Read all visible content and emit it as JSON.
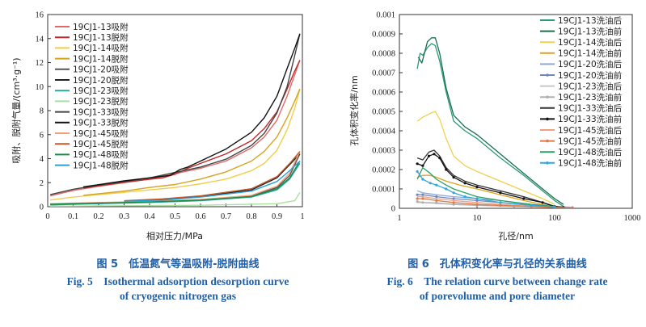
{
  "chart_data": [
    {
      "type": "line",
      "title": "低温氮气等温吸附-脱附曲线",
      "xlabel": "相对压力/MPa",
      "ylabel": "吸附、脱附气量/(cm³·g⁻¹)",
      "xlim": [
        0,
        1.0
      ],
      "ylim": [
        0,
        16
      ],
      "xticks": [
        "0",
        "0.1",
        "0.2",
        "0.3",
        "0.4",
        "0.5",
        "0.6",
        "0.7",
        "0.8",
        "0.9",
        "1"
      ],
      "yticks": [
        "0",
        "2",
        "4",
        "6",
        "8",
        "10",
        "12",
        "14",
        "16"
      ],
      "legend_position": "top-left",
      "caption_zh": "图 5　低温氮气等温吸附-脱附曲线",
      "caption_en_1": "Fig. 5　Isothermal adsorption desorption curve",
      "caption_en_2": "of cryogenic nitrogen gas",
      "series": [
        {
          "name": "19CJ1-13吸附",
          "color": "#e06a6a",
          "x": [
            0.01,
            0.1,
            0.2,
            0.3,
            0.4,
            0.5,
            0.6,
            0.7,
            0.8,
            0.85,
            0.9,
            0.94,
            0.97,
            0.99
          ],
          "y": [
            0.9,
            1.35,
            1.7,
            2.0,
            2.3,
            2.75,
            3.2,
            3.8,
            4.9,
            5.8,
            7.2,
            9.2,
            11.0,
            12.2
          ]
        },
        {
          "name": "19CJ1-13脱附",
          "color": "#c0282a",
          "x": [
            0.99,
            0.97,
            0.94,
            0.9,
            0.85,
            0.8,
            0.7,
            0.6,
            0.55,
            0.5,
            0.45,
            0.3,
            0.14
          ],
          "y": [
            12.2,
            11.3,
            9.8,
            7.9,
            6.5,
            5.5,
            4.4,
            3.6,
            3.2,
            2.7,
            2.4,
            2.05,
            1.55
          ]
        },
        {
          "name": "19CJ1-14吸附",
          "color": "#f2cc4a",
          "x": [
            0.01,
            0.1,
            0.2,
            0.3,
            0.4,
            0.5,
            0.6,
            0.7,
            0.8,
            0.85,
            0.9,
            0.94,
            0.97,
            0.99
          ],
          "y": [
            0.55,
            0.8,
            1.0,
            1.2,
            1.4,
            1.6,
            1.9,
            2.3,
            3.0,
            3.6,
            4.7,
            6.4,
            8.2,
            9.8
          ]
        },
        {
          "name": "19CJ1-14脱附",
          "color": "#d6a21c",
          "x": [
            0.99,
            0.97,
            0.94,
            0.9,
            0.85,
            0.8,
            0.7,
            0.6,
            0.5,
            0.4,
            0.3,
            0.14
          ],
          "y": [
            9.8,
            8.8,
            7.4,
            5.8,
            4.6,
            3.8,
            2.9,
            2.3,
            1.85,
            1.6,
            1.3,
            0.95
          ]
        },
        {
          "name": "19CJ1-20吸附",
          "color": "#555555",
          "x": [
            0.01,
            0.2,
            0.4,
            0.6,
            0.8,
            0.9,
            0.95,
            0.99
          ],
          "y": [
            0.2,
            0.3,
            0.4,
            0.55,
            0.9,
            1.6,
            2.6,
            4.4
          ]
        },
        {
          "name": "19CJ1-20脱附",
          "color": "#222222",
          "x": [
            0.99,
            0.95,
            0.9,
            0.8,
            0.6,
            0.45,
            0.3
          ],
          "y": [
            4.4,
            3.5,
            2.4,
            1.4,
            0.85,
            0.6,
            0.45
          ]
        },
        {
          "name": "19CJ1-23吸附",
          "color": "#2aa79c",
          "x": [
            0.01,
            0.2,
            0.4,
            0.6,
            0.8,
            0.9,
            0.95,
            0.99
          ],
          "y": [
            0.15,
            0.25,
            0.35,
            0.5,
            0.8,
            1.4,
            2.3,
            3.6
          ]
        },
        {
          "name": "19CJ1-23脱附",
          "color": "#a8e0a0",
          "x": [
            0.01,
            0.3,
            0.6,
            0.9,
            0.97,
            0.99
          ],
          "y": [
            0.05,
            0.08,
            0.12,
            0.25,
            0.5,
            1.2
          ]
        },
        {
          "name": "19CJ1-33吸附",
          "color": "#444444",
          "x": [
            0.01,
            0.1,
            0.2,
            0.3,
            0.4,
            0.5,
            0.6,
            0.7,
            0.8,
            0.85,
            0.9,
            0.94,
            0.97,
            0.99
          ],
          "y": [
            1.0,
            1.45,
            1.8,
            2.1,
            2.4,
            2.85,
            3.3,
            3.95,
            5.1,
            6.1,
            7.8,
            10.0,
            12.6,
            14.4
          ]
        },
        {
          "name": "19CJ1-33脱附",
          "color": "#111111",
          "x": [
            0.99,
            0.97,
            0.94,
            0.9,
            0.85,
            0.8,
            0.7,
            0.6,
            0.55,
            0.52,
            0.48,
            0.3,
            0.14
          ],
          "y": [
            14.4,
            13.2,
            11.5,
            9.2,
            7.4,
            6.2,
            4.8,
            3.8,
            3.3,
            3.1,
            2.6,
            2.15,
            1.65
          ]
        },
        {
          "name": "19CJ1-45吸附",
          "color": "#f3a07a",
          "x": [
            0.01,
            0.2,
            0.4,
            0.6,
            0.8,
            0.9,
            0.95,
            0.99
          ],
          "y": [
            0.25,
            0.35,
            0.45,
            0.6,
            0.95,
            1.7,
            2.8,
            4.6
          ]
        },
        {
          "name": "19CJ1-45脱附",
          "color": "#c45a28",
          "x": [
            0.99,
            0.95,
            0.9,
            0.8,
            0.6,
            0.45,
            0.3
          ],
          "y": [
            4.6,
            3.6,
            2.5,
            1.5,
            0.9,
            0.65,
            0.5
          ]
        },
        {
          "name": "19CJ1-48吸附",
          "color": "#1a8c4a",
          "x": [
            0.01,
            0.2,
            0.4,
            0.6,
            0.8,
            0.9,
            0.95,
            0.99
          ],
          "y": [
            0.2,
            0.3,
            0.4,
            0.55,
            0.85,
            1.5,
            2.4,
            3.8
          ]
        },
        {
          "name": "19CJ1-48脱附",
          "color": "#2aa0d8",
          "x": [
            0.99,
            0.95,
            0.9,
            0.8,
            0.6,
            0.45,
            0.3
          ],
          "y": [
            3.8,
            3.0,
            2.1,
            1.3,
            0.8,
            0.55,
            0.45
          ]
        }
      ]
    },
    {
      "type": "line",
      "title": "孔体积变化率与孔径的关系曲线",
      "xlabel": "孔径/nm",
      "ylabel": "孔体积变化率/nm",
      "xscale": "log",
      "xlim": [
        1,
        1000
      ],
      "ylim": [
        0,
        0.001
      ],
      "xticks": [
        "1",
        "10",
        "100",
        "1000"
      ],
      "yticks": [
        "0",
        "0.0001",
        "0.0002",
        "0.0003",
        "0.0004",
        "0.0005",
        "0.0006",
        "0.0007",
        "0.0008",
        "0.0009",
        "0.001"
      ],
      "legend_position": "top-right",
      "caption_zh": "图 6　孔体积变化率与孔径的关系曲线",
      "caption_en_1": "Fig. 6　The relation curve between change rate",
      "caption_en_2": "of porevolume and pore diameter",
      "series": [
        {
          "name": "19CJ1-13洗油后",
          "color": "#2a9a78",
          "marker": false,
          "x": [
            1.7,
            1.85,
            2.0,
            2.3,
            2.6,
            2.9,
            3.3,
            4.0,
            5.0,
            7.0,
            10,
            20,
            40,
            70,
            100,
            130
          ],
          "y": [
            0.00072,
            0.0008,
            0.00079,
            0.00083,
            0.00085,
            0.00084,
            0.00076,
            0.0006,
            0.00045,
            0.0004,
            0.00036,
            0.00026,
            0.00017,
            9e-05,
            4e-05,
            1e-05
          ]
        },
        {
          "name": "19CJ1-13洗油前",
          "color": "#1a6e4a",
          "marker": false,
          "x": [
            1.75,
            1.95,
            2.3,
            2.6,
            2.9,
            3.3,
            4.0,
            5.0,
            7.0,
            10,
            20,
            40,
            70,
            100,
            130
          ],
          "y": [
            0.00078,
            0.00075,
            0.00086,
            0.00088,
            0.00088,
            0.0008,
            0.00062,
            0.00048,
            0.00042,
            0.00038,
            0.00028,
            0.00018,
            0.0001,
            5e-05,
            2e-05
          ]
        },
        {
          "name": "19CJ1-14洗油后",
          "color": "#f0d050",
          "marker": false,
          "x": [
            1.7,
            2.0,
            2.5,
            2.9,
            3.3,
            4.0,
            5.0,
            7.0,
            10,
            20,
            40,
            70,
            100
          ],
          "y": [
            0.00045,
            0.00047,
            0.00049,
            0.0005,
            0.00046,
            0.00036,
            0.00027,
            0.00022,
            0.00019,
            0.00014,
            9e-05,
            5e-05,
            2e-05
          ]
        },
        {
          "name": "19CJ1-14洗油前",
          "color": "#e0a020",
          "marker": false,
          "x": [
            1.7,
            2.0,
            2.5,
            3.0,
            4.0,
            6.0,
            10,
            20,
            40,
            70,
            100
          ],
          "y": [
            0.00016,
            0.00017,
            0.00017,
            0.00016,
            0.00014,
            0.00012,
            0.0001,
            7e-05,
            4e-05,
            2e-05,
            1e-05
          ]
        },
        {
          "name": "19CJ1-20洗油后",
          "color": "#8fa8d8",
          "marker": false,
          "x": [
            1.7,
            2.0,
            3.0,
            5.0,
            10,
            20,
            50,
            100,
            170
          ],
          "y": [
            9e-05,
            8e-05,
            7e-05,
            6e-05,
            5e-05,
            4e-05,
            2e-05,
            1e-05,
            5e-06
          ]
        },
        {
          "name": "19CJ1-20洗油前",
          "color": "#6f86c2",
          "marker": true,
          "x": [
            1.7,
            2.0,
            3.0,
            5.0,
            10,
            20,
            50,
            100,
            170
          ],
          "y": [
            7e-05,
            7e-05,
            6e-05,
            5e-05,
            4e-05,
            3e-05,
            1.5e-05,
            8e-06,
            4e-06
          ]
        },
        {
          "name": "19CJ1-23洗油后",
          "color": "#c8c8c8",
          "marker": false,
          "x": [
            1.7,
            2.0,
            3.0,
            5.0,
            10,
            30,
            100,
            170
          ],
          "y": [
            3e-05,
            3e-05,
            2.5e-05,
            2e-05,
            1.5e-05,
            1e-05,
            5e-06,
            2e-06
          ]
        },
        {
          "name": "19CJ1-23洗油前",
          "color": "#b0b0b0",
          "marker": true,
          "x": [
            1.7,
            2.0,
            3.0,
            5.0,
            10,
            30,
            100,
            170
          ],
          "y": [
            3.5e-05,
            3e-05,
            2.8e-05,
            2e-05,
            1.6e-05,
            1e-05,
            5e-06,
            2e-06
          ]
        },
        {
          "name": "19CJ1-33洗油后",
          "color": "#333333",
          "marker": false,
          "x": [
            1.7,
            2.0,
            2.4,
            2.8,
            3.3,
            4.0,
            5.0,
            7.0,
            10,
            20,
            40,
            70,
            100,
            130
          ],
          "y": [
            0.00026,
            0.00025,
            0.00029,
            0.0003,
            0.00027,
            0.00021,
            0.00017,
            0.00014,
            0.00012,
            9e-05,
            6e-05,
            3e-05,
            1e-05,
            5e-06
          ]
        },
        {
          "name": "19CJ1-33洗油前",
          "color": "#111111",
          "marker": true,
          "x": [
            1.7,
            2.0,
            2.4,
            2.8,
            3.3,
            4.0,
            5.0,
            7.0,
            10,
            20,
            40,
            70,
            100,
            130
          ],
          "y": [
            0.00023,
            0.00022,
            0.00027,
            0.00028,
            0.00026,
            0.0002,
            0.00016,
            0.00013,
            0.00011,
            8e-05,
            5e-05,
            3e-05,
            1e-05,
            5e-06
          ]
        },
        {
          "name": "19CJ1-45洗油后",
          "color": "#f0a080",
          "marker": false,
          "x": [
            1.7,
            2.0,
            3.0,
            5.0,
            10,
            20,
            50,
            100,
            170
          ],
          "y": [
            6e-05,
            6e-05,
            5e-05,
            4e-05,
            3e-05,
            2e-05,
            1e-05,
            5e-06,
            2e-06
          ]
        },
        {
          "name": "19CJ1-45洗油前",
          "color": "#e07848",
          "marker": true,
          "x": [
            1.7,
            2.0,
            3.0,
            5.0,
            10,
            20,
            50,
            100,
            170
          ],
          "y": [
            5e-05,
            5e-05,
            4e-05,
            3e-05,
            2e-05,
            1.5e-05,
            1e-05,
            4e-06,
            2e-06
          ]
        },
        {
          "name": "19CJ1-48洗油后",
          "color": "#2aa060",
          "marker": false,
          "x": [
            1.7,
            2.0,
            2.5,
            3.0,
            4.0,
            5.0,
            7.0,
            10,
            20,
            50,
            100
          ],
          "y": [
            0.00015,
            0.00021,
            0.00018,
            0.00015,
            0.00012,
            0.0001,
            8e-05,
            6e-05,
            4e-05,
            2e-05,
            1e-05
          ]
        },
        {
          "name": "19CJ1-48洗油前",
          "color": "#30a8d8",
          "marker": true,
          "x": [
            1.7,
            2.0,
            2.5,
            3.0,
            4.0,
            5.0,
            7.0,
            10,
            20,
            50,
            100
          ],
          "y": [
            0.00019,
            0.00015,
            0.00013,
            0.00012,
            0.0001,
            8e-05,
            6e-05,
            5e-05,
            3e-05,
            1.5e-05,
            8e-06
          ]
        }
      ]
    }
  ]
}
